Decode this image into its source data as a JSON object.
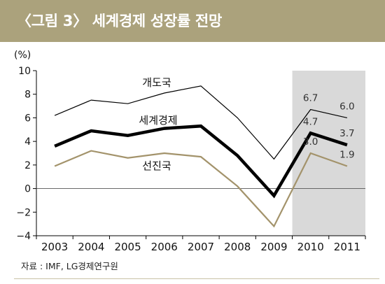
{
  "header": {
    "title": "〈그림 3〉 세계경제 성장률 전망"
  },
  "footer": {
    "source": "자료 : IMF, LG경제연구원"
  },
  "colors": {
    "header_bg": "#aba27c",
    "world": "#000000",
    "developing": "#000000",
    "advanced": "#a3936b",
    "forecast_shade": "#d9d9d9"
  },
  "chart_data": {
    "type": "line",
    "ylabel": "(%)",
    "ylim": [
      -4,
      10
    ],
    "yticks": [
      10,
      8,
      6,
      4,
      2,
      0,
      -2,
      -4
    ],
    "categories": [
      "2003",
      "2004",
      "2005",
      "2006",
      "2007",
      "2008",
      "2009",
      "2010",
      "2011"
    ],
    "forecast_range": [
      "2010",
      "2011"
    ],
    "series": [
      {
        "name": "개도국",
        "values": [
          6.2,
          7.5,
          7.2,
          8.1,
          8.7,
          6.0,
          2.5,
          6.7,
          6.0
        ]
      },
      {
        "name": "세계경제",
        "values": [
          3.6,
          4.9,
          4.5,
          5.1,
          5.3,
          2.8,
          -0.6,
          4.7,
          3.7
        ]
      },
      {
        "name": "선진국",
        "values": [
          1.9,
          3.2,
          2.6,
          3.0,
          2.7,
          0.2,
          -3.2,
          3.0,
          1.9
        ]
      }
    ],
    "data_labels": [
      {
        "text": "6.7"
      },
      {
        "text": "6.0"
      },
      {
        "text": "4.7"
      },
      {
        "text": "3.7"
      },
      {
        "text": "3.0"
      },
      {
        "text": "1.9"
      }
    ]
  }
}
